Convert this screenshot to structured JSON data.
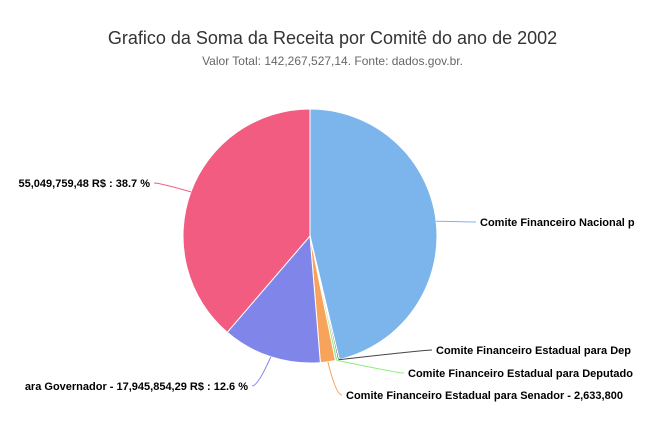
{
  "chart_data": {
    "type": "pie",
    "title": "Grafico da Soma da Receita por Comitê do ano de 2002",
    "subtitle": "Valor Total: 142,267,527,14. Fonte: dados.gov.br.",
    "slices": [
      {
        "label": "Comite Financeiro Nacional p",
        "value_pct": 46.3,
        "color": "#7cb5ec",
        "value_text": ""
      },
      {
        "label": "Comite Financeiro Estadual para Dep",
        "value_pct": 0.2,
        "color": "#434348",
        "value_text": ""
      },
      {
        "label": "Comite Financeiro Estadual para Deputado",
        "value_pct": 0.3,
        "color": "#90ed7d",
        "value_text": ""
      },
      {
        "label": "Comite Financeiro Estadual para Senador",
        "value_pct": 1.9,
        "color": "#f7a35c",
        "value_text": "2,633,800"
      },
      {
        "label": "ara Governador",
        "value_pct": 12.6,
        "color": "#8085e9",
        "value_text": "17,945,854,29 R$ : 12.6 %"
      },
      {
        "label": "",
        "value_pct": 38.7,
        "color": "#f15c80",
        "value_text": "55,049,759,48 R$ : 38.7 %"
      }
    ]
  }
}
